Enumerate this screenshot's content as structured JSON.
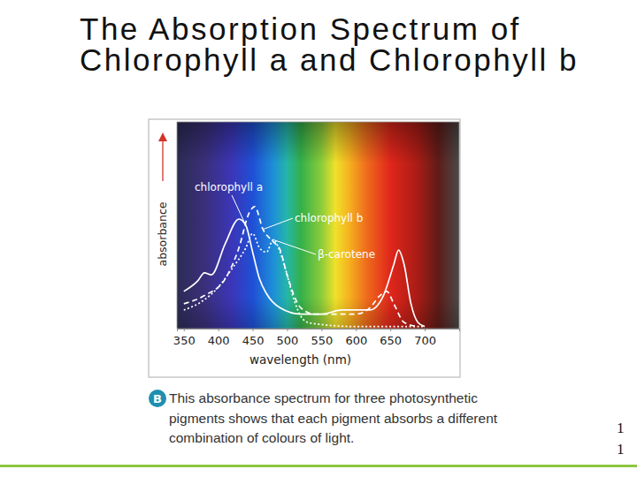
{
  "chart_data": {
    "type": "line",
    "title": "The Absorption Spectrum of Chlorophyll a and Chlorophyll b",
    "x_label": "wavelength (nm)",
    "y_label": "absorbance",
    "xlim": [
      340,
      750
    ],
    "xticks": [
      350,
      400,
      450,
      500,
      550,
      600,
      650,
      700
    ],
    "ylim": [
      0,
      1
    ],
    "tick_labels": "x",
    "series": [
      {
        "name": "chlorophyll a",
        "color": "#ffffff",
        "line_style": "solid",
        "x": [
          350,
          370,
          380,
          390,
          410,
          430,
          440,
          450,
          460,
          470,
          490,
          520,
          550,
          580,
          600,
          620,
          640,
          655,
          662,
          670,
          680,
          690,
          700
        ],
        "values": [
          0.18,
          0.23,
          0.27,
          0.26,
          0.41,
          0.53,
          0.5,
          0.37,
          0.24,
          0.17,
          0.1,
          0.07,
          0.07,
          0.09,
          0.09,
          0.09,
          0.16,
          0.31,
          0.38,
          0.31,
          0.12,
          0.03,
          0.01
        ]
      },
      {
        "name": "chlorophyll b",
        "color": "#ffffff",
        "line_style": "dashed",
        "x": [
          350,
          380,
          410,
          430,
          445,
          453,
          465,
          480,
          490,
          500,
          520,
          540,
          570,
          600,
          620,
          635,
          645,
          655,
          670,
          690
        ],
        "values": [
          0.12,
          0.16,
          0.24,
          0.39,
          0.56,
          0.59,
          0.48,
          0.42,
          0.38,
          0.26,
          0.1,
          0.07,
          0.07,
          0.07,
          0.1,
          0.16,
          0.18,
          0.12,
          0.03,
          0.01
        ]
      },
      {
        "name": "β-carotene",
        "color": "#ffffff",
        "line_style": "dotted",
        "x": [
          350,
          380,
          400,
          420,
          440,
          450,
          460,
          470,
          480,
          490,
          500,
          510,
          520,
          530,
          550,
          600,
          650,
          700
        ],
        "values": [
          0.09,
          0.14,
          0.2,
          0.29,
          0.39,
          0.46,
          0.39,
          0.37,
          0.43,
          0.37,
          0.26,
          0.14,
          0.06,
          0.03,
          0.02,
          0.01,
          0.01,
          0.01
        ]
      }
    ],
    "annotations": [
      "B",
      "This absorbance spectrum for three photosynthetic",
      "pigments shows that each pigment absorbs a different",
      "combination of colours of light."
    ]
  },
  "slide_number": [
    "1",
    "1"
  ]
}
